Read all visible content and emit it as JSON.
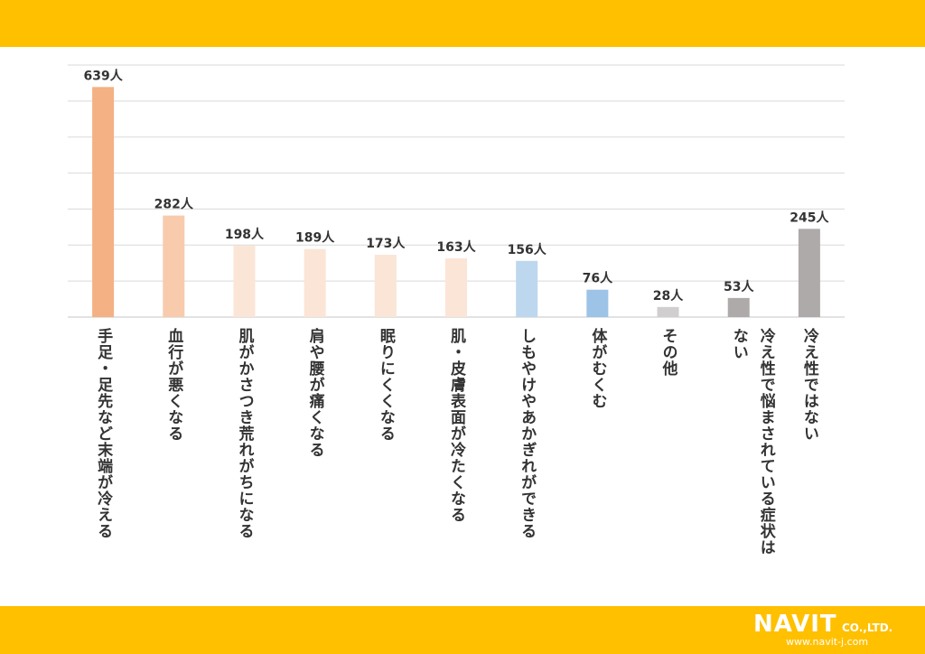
{
  "header": {
    "color": "#FFC000"
  },
  "footer": {
    "color": "#FFC000"
  },
  "logo": {
    "text": "NAVIT",
    "suffix": "CO.,LTD.",
    "url": "www.navit-j.com"
  },
  "chart_data": {
    "type": "bar",
    "title": "",
    "xlabel": "",
    "ylabel": "",
    "ylim": [
      0,
      700
    ],
    "grid": true,
    "categories": [
      "手足・足先など末端が冷える",
      "血行が悪くなる",
      "肌がかさつき荒れがちになる",
      "肩や腰が痛くなる",
      "眠りにくくなる",
      "肌・皮膚表面が冷たくなる",
      "しもやけやあかぎれができる",
      "体がむくむ",
      "その他",
      "冷え性で悩まされている症状はない",
      "冷え性ではない"
    ],
    "values": [
      639,
      282,
      198,
      189,
      173,
      163,
      156,
      76,
      28,
      53,
      245
    ],
    "value_labels": [
      "639人",
      "282人",
      "198人",
      "189人",
      "173人",
      "163人",
      "156人",
      "76人",
      "28人",
      "53人",
      "245人"
    ],
    "colors": [
      "#F4B183",
      "#F8CBAD",
      "#FBE5D6",
      "#FBE5D6",
      "#FBE5D6",
      "#FBE5D6",
      "#BDD7EE",
      "#9DC3E6",
      "#D0CECE",
      "#AEAAAA",
      "#AEAAAA"
    ]
  }
}
